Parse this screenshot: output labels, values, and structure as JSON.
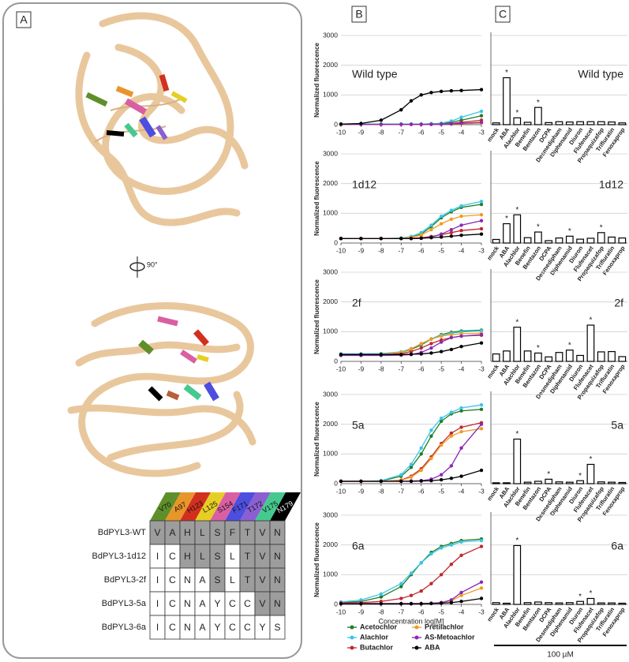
{
  "figure": {
    "panel_labels": [
      "A",
      "B",
      "C"
    ],
    "rotation_label": "90°"
  },
  "table": {
    "columns": [
      "V70",
      "A97",
      "H123",
      "L125",
      "S154",
      "F171",
      "T172",
      "V175",
      "N179"
    ],
    "column_colors": [
      "#5f8f2a",
      "#e8962a",
      "#d2301f",
      "#e6cf24",
      "#d95fa3",
      "#4d4de0",
      "#8b5fd1",
      "#46c98f",
      "#000000"
    ],
    "rows": [
      {
        "name": "BdPYL3-WT",
        "cells": [
          "V",
          "A",
          "H",
          "L",
          "S",
          "F",
          "T",
          "V",
          "N"
        ]
      },
      {
        "name": "BdPYL3-1d12",
        "cells": [
          "I",
          "C",
          "H",
          "L",
          "S",
          "L",
          "T",
          "V",
          "N"
        ]
      },
      {
        "name": "BdPYL3-2f",
        "cells": [
          "I",
          "C",
          "N",
          "A",
          "S",
          "L",
          "T",
          "V",
          "N"
        ]
      },
      {
        "name": "BdPYL3-5a",
        "cells": [
          "I",
          "C",
          "N",
          "A",
          "Y",
          "C",
          "C",
          "V",
          "N"
        ]
      },
      {
        "name": "BdPYL3-6a",
        "cells": [
          "I",
          "C",
          "N",
          "A",
          "Y",
          "C",
          "C",
          "Y",
          "S"
        ]
      }
    ]
  },
  "chart_data": [
    {
      "type": "line",
      "ylabel": "Normalized fluorescence",
      "xlabel": "Concentration log[M]",
      "x": [
        -10,
        -9,
        -8,
        -7,
        -6.5,
        -6,
        -5.5,
        -5,
        -4.5,
        -4,
        -3
      ],
      "xlim": [
        -10,
        -3
      ],
      "xticks": [
        -10,
        -9,
        -8,
        -7,
        -6,
        -5,
        -4,
        -3
      ],
      "ylim": [
        0,
        3000
      ],
      "yticks": [
        0,
        1000,
        2000,
        3000
      ],
      "grid": true,
      "series": [
        {
          "name": "Acetochlor",
          "color": "#1e7d24"
        },
        {
          "name": "Alachlor",
          "color": "#38c5ea"
        },
        {
          "name": "Butachlor",
          "color": "#c0282e"
        },
        {
          "name": "Pretilachlor",
          "color": "#f29a1f"
        },
        {
          "name": "AS-Metoachlor",
          "color": "#8a28b5"
        },
        {
          "name": "ABA",
          "color": "#000000"
        }
      ],
      "panels": [
        {
          "annotation": "Wild type",
          "values": [
            [
              20,
              20,
              20,
              20,
              20,
              20,
              30,
              40,
              80,
              150,
              300
            ],
            [
              20,
              20,
              20,
              20,
              20,
              20,
              30,
              50,
              120,
              250,
              450
            ],
            [
              10,
              10,
              10,
              10,
              10,
              10,
              15,
              20,
              40,
              80,
              150
            ],
            [
              10,
              10,
              10,
              10,
              10,
              10,
              10,
              15,
              20,
              30,
              50
            ],
            [
              10,
              10,
              10,
              10,
              10,
              10,
              10,
              15,
              25,
              45,
              80
            ],
            [
              20,
              40,
              150,
              500,
              800,
              1000,
              1080,
              1120,
              1140,
              1150,
              1180
            ]
          ]
        },
        {
          "annotation": "1d12",
          "values": [
            [
              150,
              150,
              150,
              160,
              200,
              300,
              550,
              850,
              1050,
              1200,
              1300
            ],
            [
              150,
              150,
              150,
              170,
              220,
              350,
              600,
              900,
              1100,
              1250,
              1400
            ],
            [
              150,
              150,
              150,
              150,
              160,
              180,
              220,
              280,
              350,
              420,
              480
            ],
            [
              150,
              150,
              150,
              160,
              190,
              270,
              450,
              650,
              800,
              900,
              950
            ],
            [
              150,
              150,
              150,
              150,
              150,
              160,
              200,
              300,
              450,
              600,
              750
            ],
            [
              150,
              150,
              150,
              150,
              150,
              160,
              180,
              200,
              230,
              260,
              300
            ]
          ]
        },
        {
          "annotation": "2f",
          "values": [
            [
              250,
              250,
              260,
              300,
              400,
              550,
              750,
              900,
              980,
              1020,
              1050
            ],
            [
              250,
              250,
              260,
              320,
              430,
              580,
              760,
              880,
              950,
              990,
              1030
            ],
            [
              220,
              220,
              230,
              260,
              330,
              450,
              600,
              720,
              800,
              850,
              880
            ],
            [
              230,
              230,
              240,
              300,
              420,
              600,
              750,
              850,
              900,
              930,
              950
            ],
            [
              200,
              200,
              200,
              210,
              230,
              300,
              450,
              650,
              800,
              850,
              900
            ],
            [
              230,
              230,
              230,
              230,
              240,
              250,
              280,
              330,
              400,
              500,
              620
            ]
          ]
        },
        {
          "annotation": "5a",
          "values": [
            [
              80,
              80,
              90,
              250,
              550,
              1000,
              1600,
              2100,
              2350,
              2450,
              2500
            ],
            [
              80,
              80,
              100,
              300,
              650,
              1200,
              1800,
              2200,
              2400,
              2550,
              2650
            ],
            [
              80,
              80,
              80,
              120,
              250,
              500,
              900,
              1350,
              1700,
              1900,
              2050
            ],
            [
              80,
              80,
              80,
              110,
              220,
              450,
              850,
              1300,
              1600,
              1750,
              1850
            ],
            [
              80,
              80,
              80,
              80,
              90,
              100,
              150,
              300,
              600,
              1200,
              2000
            ],
            [
              80,
              80,
              80,
              80,
              80,
              90,
              100,
              130,
              180,
              250,
              450
            ]
          ]
        },
        {
          "annotation": "6a",
          "values": [
            [
              60,
              100,
              250,
              600,
              1000,
              1400,
              1750,
              1950,
              2050,
              2150,
              2200
            ],
            [
              80,
              150,
              350,
              700,
              1050,
              1400,
              1700,
              1900,
              2000,
              2100,
              2150
            ],
            [
              50,
              60,
              100,
              200,
              300,
              450,
              700,
              1000,
              1350,
              1650,
              1950
            ],
            [
              30,
              30,
              30,
              30,
              30,
              30,
              40,
              60,
              120,
              300,
              550
            ],
            [
              30,
              30,
              30,
              30,
              30,
              30,
              40,
              60,
              150,
              400,
              750
            ],
            [
              20,
              20,
              20,
              20,
              20,
              20,
              30,
              40,
              60,
              100,
              200
            ]
          ]
        }
      ]
    },
    {
      "type": "bar",
      "color": "#ffffff",
      "edgecolor": "#000000",
      "categories": [
        "mock",
        "ABA",
        "Alachlor",
        "Benefin",
        "Bentazon",
        "DCPA",
        "Desmedipham",
        "Diphenamid",
        "Diuron",
        "Flufenacet",
        "Propaquizafop",
        "Trifluratin",
        "Fenoxaprop"
      ],
      "ylim": [
        0,
        3000
      ],
      "yticks": [
        0,
        1000,
        2000,
        3000
      ],
      "grid": true,
      "scale_bar": "100 µM",
      "panels": [
        {
          "annotation": "Wild type",
          "values": [
            60,
            1580,
            230,
            80,
            580,
            70,
            100,
            90,
            100,
            100,
            100,
            90,
            60
          ],
          "value_labels": [
            null,
            "*",
            "*",
            null,
            "*",
            null,
            null,
            null,
            null,
            null,
            null,
            null,
            null
          ]
        },
        {
          "annotation": "1d12",
          "values": [
            120,
            650,
            950,
            180,
            370,
            80,
            170,
            230,
            130,
            160,
            350,
            200,
            170
          ],
          "value_labels": [
            null,
            "*",
            "*",
            null,
            "*",
            null,
            null,
            "*",
            null,
            null,
            "*",
            null,
            null
          ]
        },
        {
          "annotation": "2f",
          "values": [
            250,
            350,
            1150,
            350,
            280,
            150,
            300,
            380,
            200,
            1220,
            320,
            330,
            160
          ],
          "value_labels": [
            null,
            null,
            "*",
            null,
            "*",
            null,
            null,
            "*",
            null,
            "*",
            null,
            null,
            null
          ]
        },
        {
          "annotation": "5a",
          "values": [
            30,
            30,
            1500,
            50,
            80,
            150,
            60,
            50,
            100,
            650,
            60,
            50,
            40
          ],
          "value_labels": [
            null,
            null,
            "*",
            null,
            null,
            "*",
            null,
            null,
            "*",
            "*",
            null,
            null,
            null
          ]
        },
        {
          "annotation": "6a",
          "values": [
            60,
            40,
            1980,
            60,
            80,
            60,
            50,
            60,
            100,
            200,
            50,
            50,
            40
          ],
          "value_labels": [
            null,
            null,
            "*",
            null,
            null,
            null,
            null,
            null,
            "*",
            "*",
            null,
            null,
            null
          ]
        }
      ]
    }
  ]
}
